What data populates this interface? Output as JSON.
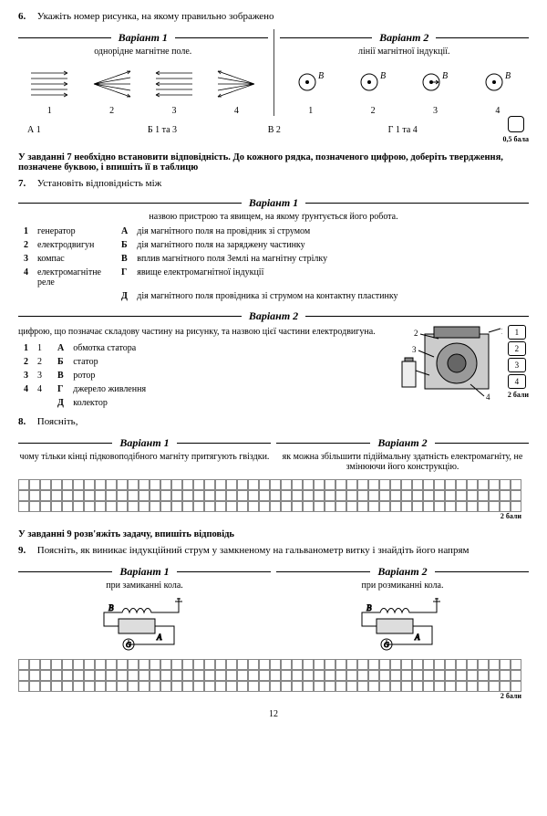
{
  "q6": {
    "num": "6.",
    "text": "Укажіть номер рисунка, на якому правильно зображено",
    "v1": {
      "title": "Варіант 1",
      "sub": "однорідне магнітне поле."
    },
    "v2": {
      "title": "Варіант 2",
      "sub": "лінії магнітної індукції."
    },
    "nums": [
      "1",
      "2",
      "3",
      "4"
    ],
    "ans": {
      "A": "А  1",
      "B": "Б  1 та 3",
      "V": "В  2",
      "G": "Г  1 та 4"
    },
    "score": "0,5 бала",
    "b_label": "B⃗"
  },
  "instr7": "У завданні 7 необхідно встановити відповідність. До кожного рядка, позначеного цифрою, доберіть твердження, позначене буквою, і впишіть її в таблицю",
  "q7": {
    "num": "7.",
    "text": "Установіть відповідність між",
    "v1": {
      "title": "Варіант 1",
      "sub": "назвою пристрою та явищем, на якому ґрунтується його робота.",
      "left": [
        "генератор",
        "електродвигун",
        "компас",
        "електромагнітне реле"
      ],
      "right": [
        "дія магнітного поля на провідник зі струмом",
        "дія магнітного поля на заряджену частинку",
        "вплив магнітного поля Землі на магнітну стрілку",
        "явище електромагнітної індукції",
        "дія магнітного поля провідника зі струмом на контактну пластинку"
      ]
    },
    "v2": {
      "title": "Варіант 2",
      "sub": "цифрою, що позначає складову частину на рисунку, та назвою цієї частини електродвигуна.",
      "left": [
        "1",
        "2",
        "3",
        "4"
      ],
      "right": [
        "обмотка статора",
        "статор",
        "ротор",
        "джерело живлення",
        "колектор"
      ]
    },
    "letters": [
      "А",
      "Б",
      "В",
      "Г",
      "Д"
    ],
    "nums": [
      "1",
      "2",
      "3",
      "4"
    ],
    "boxlabels": [
      "1",
      "2",
      "3",
      "4"
    ],
    "score": "2 бали"
  },
  "q8": {
    "num": "8.",
    "text": "Поясніть,",
    "v1": {
      "title": "Варіант 1",
      "sub": "чому тільки кінці підковоподібного магніту притягують гвіздки."
    },
    "v2": {
      "title": "Варіант 2",
      "sub": "як можна збільшити підіймальну здатність електромагніту, не змінюючи його конструкцію."
    },
    "score": "2 бали"
  },
  "instr9": "У завданні 9 розв'яжіть задачу, впишіть відповідь",
  "q9": {
    "num": "9.",
    "text": "Поясніть, як виникає індукційний струм у замкненому на гальванометр витку і знайдіть його напрям",
    "v1": {
      "title": "Варіант 1",
      "sub": "при замиканні кола."
    },
    "v2": {
      "title": "Варіант 2",
      "sub": "при розмиканні кола."
    },
    "labels": {
      "A": "A",
      "B": "B",
      "G": "G"
    },
    "score": "2 бали"
  },
  "pagenum": "12",
  "grid": {
    "cols": 46,
    "rows": 3
  }
}
